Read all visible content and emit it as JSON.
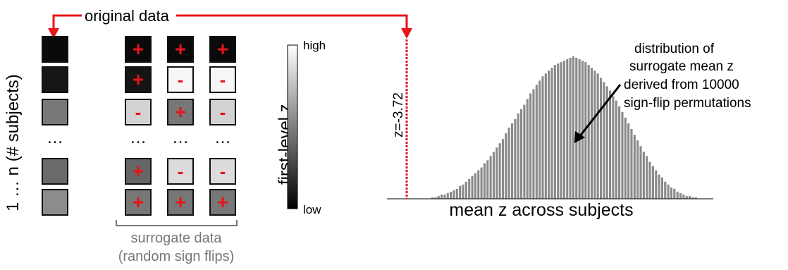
{
  "labels": {
    "original_data": "original data",
    "subjects_axis": "1 … n (# subjects)",
    "ellipsis": "…",
    "colorbar_title": "first-level z",
    "colorbar_high": "high",
    "colorbar_low": "low",
    "surrogate_line1": "surrogate data",
    "surrogate_line2": "(random sign flips)",
    "threshold": "z=-3.72",
    "hist_xlabel": "mean z across subjects",
    "annotation": [
      "distribution of",
      "surrogate mean z",
      "derived from 10000",
      "sign-flip permutations"
    ]
  },
  "colors": {
    "accent_red": "#e8141b",
    "bar_gray": "#8a8a8a",
    "frame": "#111111"
  },
  "matrix": {
    "rows": [
      "r1",
      "r2",
      "r3",
      "ellipsis",
      "r5",
      "r6"
    ],
    "original_gray": [
      "#0a0a0a",
      "#161616",
      "#787878",
      null,
      "#6a6a6a",
      "#8c8c8c"
    ],
    "surrogates": [
      [
        {
          "gray": "#0a0a0a",
          "sign": "+"
        },
        {
          "gray": "#0a0a0a",
          "sign": "+"
        },
        {
          "gray": "#0a0a0a",
          "sign": "+"
        }
      ],
      [
        {
          "gray": "#151515",
          "sign": "+"
        },
        {
          "gray": "#f6f6f6",
          "sign": "-"
        },
        {
          "gray": "#f6f6f6",
          "sign": "-"
        }
      ],
      [
        {
          "gray": "#d2d2d2",
          "sign": "-"
        },
        {
          "gray": "#777777",
          "sign": "+"
        },
        {
          "gray": "#d2d2d2",
          "sign": "-"
        }
      ],
      null,
      [
        {
          "gray": "#666666",
          "sign": "+"
        },
        {
          "gray": "#dcdcdc",
          "sign": "-"
        },
        {
          "gray": "#dcdcdc",
          "sign": "-"
        }
      ],
      [
        {
          "gray": "#777777",
          "sign": "+"
        },
        {
          "gray": "#777777",
          "sign": "+"
        },
        {
          "gray": "#777777",
          "sign": "+"
        }
      ]
    ]
  },
  "chart_data": {
    "type": "bar",
    "threshold": -3.72,
    "xlabel": "mean z across subjects",
    "bin_heights_relative": [
      0.01,
      0.01,
      0.02,
      0.03,
      0.03,
      0.04,
      0.05,
      0.06,
      0.07,
      0.09,
      0.1,
      0.12,
      0.14,
      0.16,
      0.18,
      0.2,
      0.22,
      0.25,
      0.27,
      0.3,
      0.33,
      0.36,
      0.39,
      0.42,
      0.46,
      0.5,
      0.53,
      0.56,
      0.6,
      0.63,
      0.66,
      0.7,
      0.74,
      0.77,
      0.8,
      0.83,
      0.86,
      0.88,
      0.9,
      0.92,
      0.94,
      0.95,
      0.96,
      0.97,
      0.98,
      0.99,
      1.0,
      0.99,
      0.98,
      0.97,
      0.96,
      0.94,
      0.92,
      0.9,
      0.88,
      0.85,
      0.82,
      0.79,
      0.76,
      0.72,
      0.69,
      0.65,
      0.61,
      0.57,
      0.53,
      0.49,
      0.45,
      0.41,
      0.37,
      0.33,
      0.3,
      0.26,
      0.23,
      0.2,
      0.17,
      0.15,
      0.12,
      0.1,
      0.08,
      0.07,
      0.05,
      0.04,
      0.03,
      0.02,
      0.02,
      0.01,
      0.01
    ]
  }
}
